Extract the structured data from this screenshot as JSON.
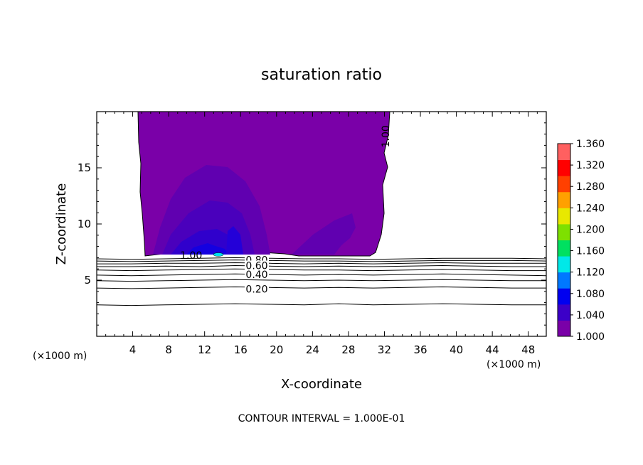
{
  "chart_data": {
    "type": "heatmap",
    "title": "saturation ratio",
    "xlabel": "X-coordinate",
    "ylabel": "Z-coordinate",
    "x_unit_left": "(×1000 m)",
    "x_unit_right": "(×1000 m)",
    "xlim": [
      0,
      50
    ],
    "ylim": [
      0,
      20
    ],
    "x_ticks": [
      4,
      8,
      12,
      16,
      20,
      24,
      28,
      32,
      36,
      40,
      44,
      48
    ],
    "y_ticks": [
      5,
      10,
      15
    ],
    "colorbar": {
      "range": [
        1.0,
        1.36
      ],
      "ticks": [
        "1.000",
        "1.040",
        "1.080",
        "1.120",
        "1.160",
        "1.200",
        "1.240",
        "1.280",
        "1.320",
        "1.360"
      ],
      "colors": [
        "#7a00a8",
        "#3c00c8",
        "#0000f0",
        "#0078ff",
        "#00e8e8",
        "#00e060",
        "#7ee000",
        "#e8e800",
        "#ffa000",
        "#ff4000",
        "#ff0000",
        "#ff6060"
      ]
    },
    "contour_labels": [
      {
        "text": "1.00",
        "x": 10.5,
        "z": 7.2
      },
      {
        "text": "1.00",
        "x": 32.5,
        "z": 17.8
      },
      {
        "text": "0.80",
        "x": 17.8,
        "z": 6.8
      },
      {
        "text": "0.60",
        "x": 17.8,
        "z": 6.3
      },
      {
        "text": "0.40",
        "x": 17.8,
        "z": 5.5
      },
      {
        "text": "0.20",
        "x": 17.8,
        "z": 4.2
      }
    ],
    "contour_lines": [
      {
        "level": 0.9,
        "z": [
          6.9,
          6.85,
          6.9,
          6.95,
          7.0,
          6.95,
          6.9,
          6.9,
          6.85,
          6.9,
          6.95,
          6.95,
          6.95,
          6.9
        ]
      },
      {
        "level": 0.8,
        "z": [
          6.7,
          6.65,
          6.7,
          6.75,
          6.8,
          6.75,
          6.7,
          6.7,
          6.65,
          6.7,
          6.75,
          6.75,
          6.75,
          6.7
        ]
      },
      {
        "level": 0.7,
        "z": [
          6.45,
          6.45,
          6.5,
          6.5,
          6.55,
          6.5,
          6.45,
          6.5,
          6.45,
          6.5,
          6.55,
          6.5,
          6.5,
          6.5
        ]
      },
      {
        "level": 0.6,
        "z": [
          6.2,
          6.2,
          6.25,
          6.2,
          6.3,
          6.25,
          6.2,
          6.25,
          6.2,
          6.25,
          6.3,
          6.25,
          6.2,
          6.2
        ]
      },
      {
        "level": 0.5,
        "z": [
          5.9,
          5.85,
          5.9,
          5.95,
          6.0,
          5.95,
          5.9,
          5.9,
          5.85,
          5.9,
          5.95,
          5.9,
          5.85,
          5.85
        ]
      },
      {
        "level": 0.4,
        "z": [
          5.45,
          5.4,
          5.45,
          5.5,
          5.55,
          5.5,
          5.45,
          5.5,
          5.45,
          5.5,
          5.55,
          5.5,
          5.45,
          5.4
        ]
      },
      {
        "level": 0.3,
        "z": [
          4.95,
          4.9,
          4.95,
          5.0,
          5.05,
          5.0,
          4.95,
          5.0,
          4.95,
          5.0,
          5.05,
          5.0,
          4.95,
          4.95
        ]
      },
      {
        "level": 0.2,
        "z": [
          4.3,
          4.25,
          4.3,
          4.35,
          4.4,
          4.35,
          4.3,
          4.35,
          4.3,
          4.35,
          4.4,
          4.35,
          4.3,
          4.3
        ]
      },
      {
        "level": 0.1,
        "z": [
          2.8,
          2.75,
          2.8,
          2.85,
          2.9,
          2.85,
          2.8,
          2.9,
          2.8,
          2.85,
          2.9,
          2.85,
          2.8,
          2.8
        ]
      }
    ],
    "supersaturated_region": {
      "x_range": [
        5,
        32
      ],
      "z_range": [
        7.0,
        20
      ],
      "max_value": 1.1
    }
  },
  "footer": {
    "contour_interval": "CONTOUR INTERVAL = 1.000E-01"
  }
}
